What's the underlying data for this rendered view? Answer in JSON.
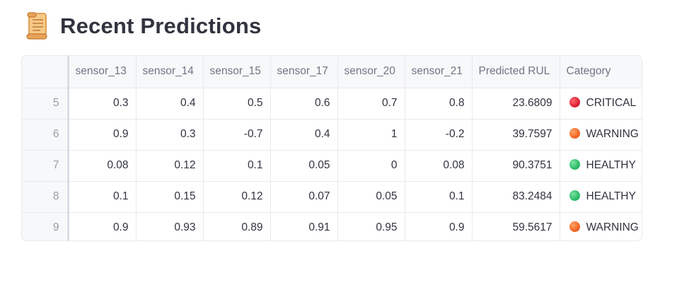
{
  "page": {
    "title": "Recent Predictions",
    "title_icon": "scroll-icon"
  },
  "table": {
    "columns": [
      "",
      "sensor_13",
      "sensor_14",
      "sensor_15",
      "sensor_17",
      "sensor_20",
      "sensor_21",
      "Predicted RUL",
      "Category"
    ],
    "rows": [
      {
        "index": "5",
        "sensor_13": "0.3",
        "sensor_14": "0.4",
        "sensor_15": "0.5",
        "sensor_17": "0.6",
        "sensor_20": "0.7",
        "sensor_21": "0.8",
        "rul": "23.6809",
        "category": "CRITICAL",
        "status": "critical",
        "status_color": "#e0243a"
      },
      {
        "index": "6",
        "sensor_13": "0.9",
        "sensor_14": "0.3",
        "sensor_15": "-0.7",
        "sensor_17": "0.4",
        "sensor_20": "1",
        "sensor_21": "-0.2",
        "rul": "39.7597",
        "category": "WARNING",
        "status": "warning",
        "status_color": "#f46a2a"
      },
      {
        "index": "7",
        "sensor_13": "0.08",
        "sensor_14": "0.12",
        "sensor_15": "0.1",
        "sensor_17": "0.05",
        "sensor_20": "0",
        "sensor_21": "0.08",
        "rul": "90.3751",
        "category": "HEALTHY",
        "status": "healthy",
        "status_color": "#2fbf6b"
      },
      {
        "index": "8",
        "sensor_13": "0.1",
        "sensor_14": "0.15",
        "sensor_15": "0.12",
        "sensor_17": "0.07",
        "sensor_20": "0.05",
        "sensor_21": "0.1",
        "rul": "83.2484",
        "category": "HEALTHY",
        "status": "healthy",
        "status_color": "#2fbf6b"
      },
      {
        "index": "9",
        "sensor_13": "0.9",
        "sensor_14": "0.93",
        "sensor_15": "0.89",
        "sensor_17": "0.91",
        "sensor_20": "0.95",
        "sensor_21": "0.9",
        "rul": "59.5617",
        "category": "WARNING",
        "status": "warning",
        "status_color": "#f46a2a"
      }
    ]
  }
}
